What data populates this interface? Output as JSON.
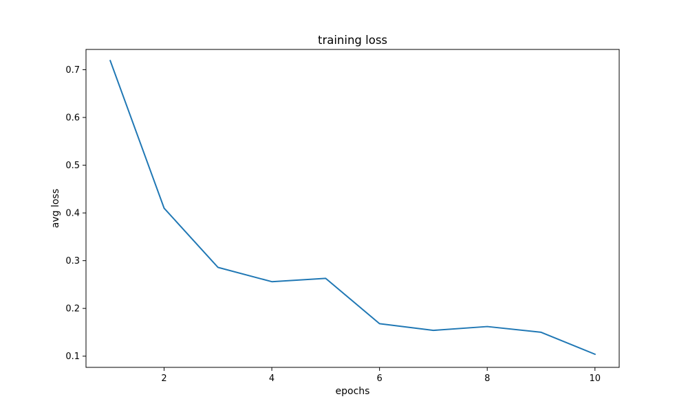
{
  "chart_data": {
    "type": "line",
    "title": "training loss",
    "xlabel": "epochs",
    "ylabel": "avg loss",
    "xlim": [
      0.55,
      10.45
    ],
    "ylim": [
      0.0765,
      0.7425
    ],
    "xticks": [
      2,
      4,
      6,
      8,
      10
    ],
    "yticks": [
      0.1,
      0.2,
      0.3,
      0.4,
      0.5,
      0.6,
      0.7
    ],
    "xtick_labels": [
      "2",
      "4",
      "6",
      "8",
      "10"
    ],
    "ytick_labels": [
      "0.1",
      "0.2",
      "0.3",
      "0.4",
      "0.5",
      "0.6",
      "0.7"
    ],
    "grid": false,
    "series": [
      {
        "color": "#1f77b4",
        "x": [
          1,
          2,
          3,
          4,
          5,
          6,
          7,
          8,
          9,
          10
        ],
        "y": [
          0.719,
          0.41,
          0.286,
          0.256,
          0.263,
          0.168,
          0.154,
          0.162,
          0.15,
          0.104
        ]
      }
    ]
  }
}
